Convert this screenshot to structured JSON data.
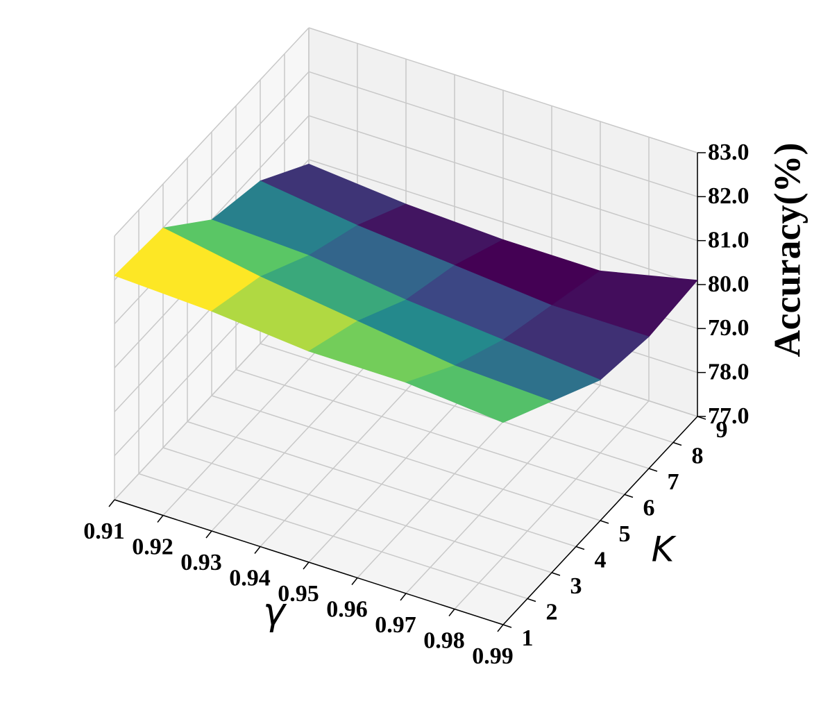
{
  "chart_data": {
    "type": "surface3d",
    "xlabel": "γ",
    "ylabel": "K",
    "zlabel": "Accuracy(%)",
    "x": [
      0.91,
      0.93,
      0.95,
      0.97,
      0.99
    ],
    "y": [
      1,
      3,
      5,
      7,
      9
    ],
    "z": [
      [
        82.1,
        82.0,
        81.8,
        81.8,
        81.6
      ],
      [
        82.0,
        81.6,
        81.3,
        81.0,
        80.9
      ],
      [
        81.0,
        80.9,
        80.6,
        80.4,
        80.2
      ],
      [
        80.7,
        80.4,
        80.2,
        80.0,
        80.0
      ],
      [
        79.9,
        79.7,
        79.6,
        79.6,
        80.1
      ]
    ],
    "colormap": "viridis",
    "xlim": [
      0.91,
      0.99
    ],
    "xticks": [
      0.91,
      0.92,
      0.93,
      0.94,
      0.95,
      0.96,
      0.97,
      0.98,
      0.99
    ],
    "ylim": [
      1,
      9
    ],
    "yticks": [
      1,
      2,
      3,
      4,
      5,
      6,
      7,
      8,
      9
    ],
    "zlim": [
      77,
      83
    ],
    "zticks": [
      {
        "value": 77,
        "label": "77.0"
      },
      {
        "value": 78,
        "label": "78.0"
      },
      {
        "value": 79,
        "label": "79.0"
      },
      {
        "value": 80,
        "label": "80.0"
      },
      {
        "value": 81,
        "label": "81.0"
      },
      {
        "value": 82,
        "label": "82.0"
      },
      {
        "value": 83,
        "label": "83.0"
      }
    ],
    "grid": true
  }
}
